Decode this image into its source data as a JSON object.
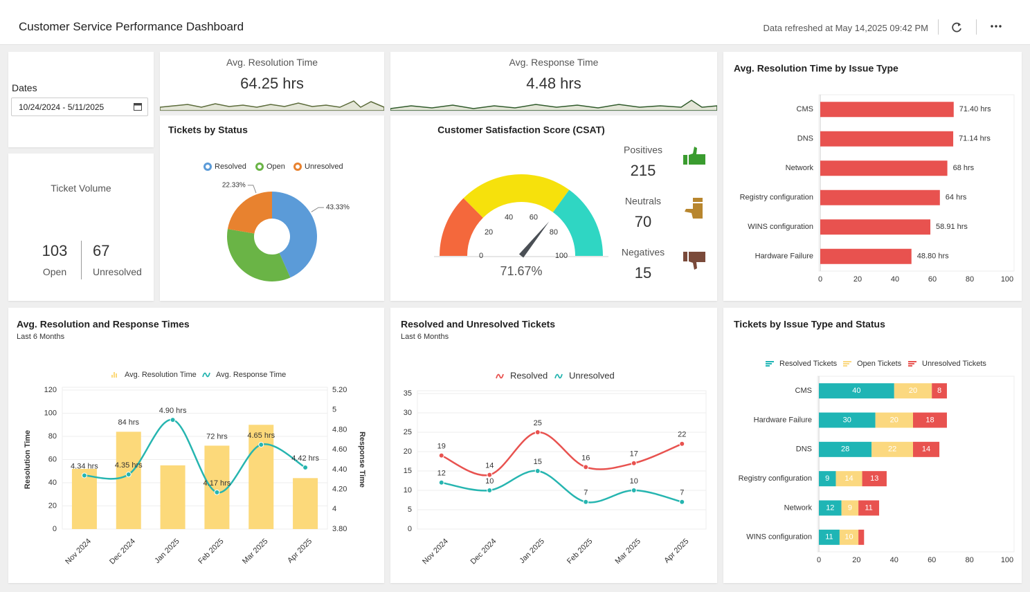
{
  "header": {
    "title": "Customer Service Performance Dashboard",
    "refreshed": "Data refreshed at May 14,2025 09:42 PM"
  },
  "dates": {
    "label": "Dates",
    "value": "10/24/2024 - 5/11/2025"
  },
  "kpis": [
    {
      "label": "Avg. Resolution Time",
      "value": "64.25 hrs"
    },
    {
      "label": "Avg. Response Time",
      "value": "4.48 hrs"
    }
  ],
  "ticket_volume": {
    "title": "Ticket Volume",
    "items": [
      {
        "value": 103,
        "label": "Open"
      },
      {
        "value": 67,
        "label": "Unresolved"
      }
    ]
  },
  "chart_data": [
    {
      "type": "pie",
      "donut": true,
      "title": "Tickets by Status",
      "categories": [
        "Resolved",
        "Open",
        "Unresolved"
      ],
      "values": [
        43.33,
        34.34,
        22.33
      ],
      "value_labels": [
        "43.33%",
        null,
        "22.33%"
      ],
      "colors": [
        "#5b9bd8",
        "#6ab446",
        "#e8822f"
      ]
    },
    {
      "type": "gauge",
      "title": "Customer Satisfaction Score (CSAT)",
      "value": 71.67,
      "value_label": "71.67%",
      "range": [
        0,
        100
      ],
      "ticks": [
        0,
        20,
        40,
        60,
        80,
        100
      ],
      "bands": [
        {
          "to": 25,
          "color": "#f4683c"
        },
        {
          "to": 70,
          "color": "#f6e10c"
        },
        {
          "to": 100,
          "color": "#2fd6c3"
        }
      ],
      "counts": [
        {
          "label": "Positives",
          "value": 215
        },
        {
          "label": "Neutrals",
          "value": 70
        },
        {
          "label": "Negatives",
          "value": 15
        }
      ]
    },
    {
      "type": "bar",
      "orientation": "horizontal",
      "title": "Avg. Resolution Time by Issue Type",
      "categories": [
        "CMS",
        "DNS",
        "Network",
        "Registry configuration",
        "WINS configuration",
        "Hardware Failure"
      ],
      "values": [
        71.4,
        71.14,
        68,
        64,
        58.91,
        48.8
      ],
      "value_labels": [
        "71.40 hrs",
        "71.14 hrs",
        "68 hrs",
        "64 hrs",
        "58.91 hrs",
        "48.80 hrs"
      ],
      "color": "#e8524f",
      "xlim": [
        0,
        100
      ],
      "xticks": [
        0,
        20,
        40,
        60,
        80,
        100
      ],
      "grid": false
    },
    {
      "type": "combo",
      "title": "Avg. Resolution and Response Times",
      "subtitle": "Last 6 Months",
      "categories": [
        "Nov 2024",
        "Dec 2024",
        "Jan 2025",
        "Feb 2025",
        "Mar 2025",
        "Apr 2025"
      ],
      "ylabel": "Resolution Time",
      "y2label": "Response Time",
      "series": [
        {
          "name": "Avg. Resolution Time",
          "type": "bar",
          "color": "#fcd97a",
          "values": [
            52,
            84,
            55,
            72,
            90,
            44
          ],
          "value_labels": [
            null,
            "84 hrs",
            null,
            "72 hrs",
            null,
            null
          ]
        },
        {
          "name": "Avg. Response Time",
          "type": "line",
          "axis": "y2",
          "color": "#26b5b0",
          "values": [
            4.34,
            4.35,
            4.9,
            4.17,
            4.65,
            4.42
          ],
          "value_labels": [
            "4.34 hrs",
            "4.35 hrs",
            "4.90 hrs",
            "4.17 hrs",
            "4.65 hrs",
            "4.42 hrs"
          ]
        }
      ],
      "ylim": [
        0,
        120
      ],
      "yticks": [
        0,
        20,
        40,
        60,
        80,
        100,
        120
      ],
      "y2lim": [
        3.8,
        5.2
      ],
      "y2ticks": [
        {
          "value": 3.8,
          "label": "3.80"
        },
        4,
        {
          "value": 4.2,
          "label": "4.20"
        },
        {
          "value": 4.4,
          "label": "4.40"
        },
        {
          "value": 4.6,
          "label": "4.60"
        },
        {
          "value": 4.8,
          "label": "4.80"
        },
        5,
        {
          "value": 5.2,
          "label": "5.20"
        }
      ],
      "grid": true
    },
    {
      "type": "line",
      "title": "Resolved and Unresolved Tickets",
      "subtitle": "Last 6 Months",
      "categories": [
        "Nov 2024",
        "Dec 2024",
        "Jan 2025",
        "Feb 2025",
        "Mar 2025",
        "Apr 2025"
      ],
      "series": [
        {
          "name": "Resolved",
          "color": "#e8524f",
          "values": [
            19,
            14,
            25,
            16,
            17,
            22
          ]
        },
        {
          "name": "Unresolved",
          "color": "#26b5b0",
          "values": [
            12,
            10,
            15,
            7,
            10,
            7
          ]
        }
      ],
      "ylim": [
        0,
        35
      ],
      "yticks": [
        0,
        5,
        10,
        15,
        20,
        25,
        30,
        35
      ],
      "grid": true
    },
    {
      "type": "bar",
      "orientation": "horizontal",
      "stacked": true,
      "title": "Tickets by Issue Type and Status",
      "categories": [
        "CMS",
        "Hardware Failure",
        "DNS",
        "Registry configuration",
        "Network",
        "WINS configuration"
      ],
      "series": [
        {
          "name": "Resolved Tickets",
          "color": "#1fb5b5",
          "values": [
            40,
            30,
            28,
            9,
            12,
            11
          ]
        },
        {
          "name": "Open Tickets",
          "color": "#fbd87f",
          "values": [
            20,
            20,
            22,
            14,
            9,
            10
          ]
        },
        {
          "name": "Unresolved Tickets",
          "color": "#e8524f",
          "values": [
            8,
            18,
            14,
            13,
            11,
            3
          ]
        }
      ],
      "xlim": [
        0,
        100
      ],
      "xticks": [
        0,
        20,
        40,
        60,
        80,
        100
      ],
      "grid": false
    }
  ]
}
